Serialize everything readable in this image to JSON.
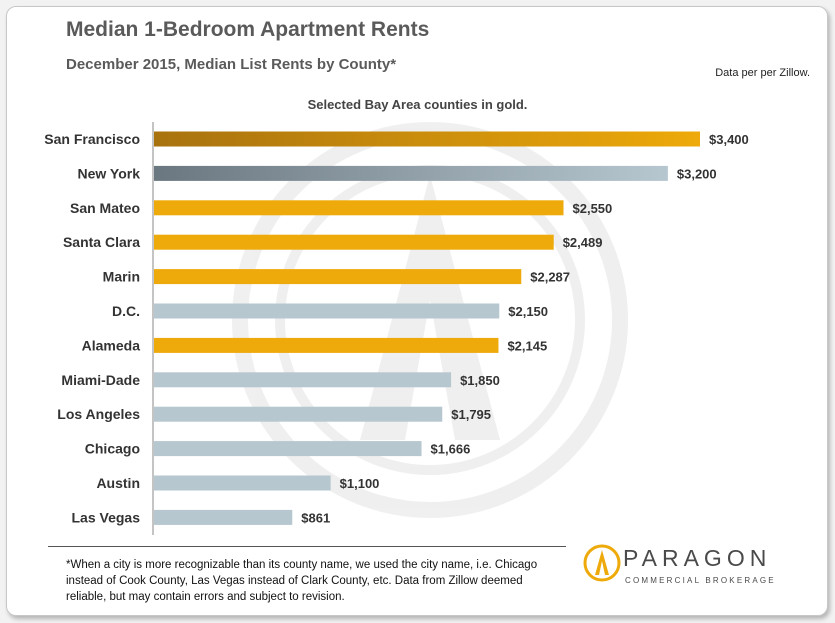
{
  "header": {
    "title": "Median 1-Bedroom Apartment Rents",
    "subtitle": "December 2015,  Median List Rents by County*",
    "source": "Data per per Zillow.",
    "note": "Selected Bay Area counties in gold."
  },
  "footnote": "*When a city is more recognizable than its county name, we used the city name, i.e. Chicago instead of Cook County, Las Vegas instead of Clark County, etc. Data from Zillow deemed reliable, but may contain errors and subject to revision.",
  "logo": {
    "name": "PARAGON",
    "tagline": "COMMERCIAL BROKERAGE"
  },
  "colors": {
    "gold": "#eeaa0a",
    "gold_dark": "#a8720e",
    "gray": "#b6c7d0",
    "gray_dark": "#6b7780"
  },
  "chart_data": {
    "type": "bar",
    "orientation": "horizontal",
    "categories": [
      "San Francisco",
      "New York",
      "San Mateo",
      "Santa Clara",
      "Marin",
      "D.C.",
      "Alameda",
      "Miami-Dade",
      "Los Angeles",
      "Chicago",
      "Austin",
      "Las Vegas"
    ],
    "values": [
      3400,
      3200,
      2550,
      2489,
      2287,
      2150,
      2145,
      1850,
      1795,
      1666,
      1100,
      861
    ],
    "data_labels": [
      "$3,400",
      "$3,200",
      "$2,550",
      "$2,489",
      "$2,287",
      "$2,150",
      "$2,145",
      "$1,850",
      "$1,795",
      "$1,666",
      "$1,100",
      "$861"
    ],
    "highlight": [
      true,
      false,
      true,
      true,
      true,
      false,
      true,
      false,
      false,
      false,
      false,
      false
    ],
    "gradient": [
      true,
      true,
      false,
      false,
      false,
      false,
      false,
      false,
      false,
      false,
      false,
      false
    ],
    "xlim": [
      0,
      3400
    ],
    "grid": false,
    "legend": "none"
  }
}
